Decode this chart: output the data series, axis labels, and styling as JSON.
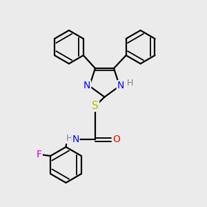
{
  "bg_color": "#ebebeb",
  "line_color": "#000000",
  "bond_width": 1.6,
  "atom_colors": {
    "N": "#0000ff",
    "O": "#ff0000",
    "S": "#bbbb00",
    "F": "#cc00cc",
    "H": "#808080"
  },
  "font_size": 9,
  "fig_size": [
    3.0,
    3.0
  ],
  "dpi": 100
}
